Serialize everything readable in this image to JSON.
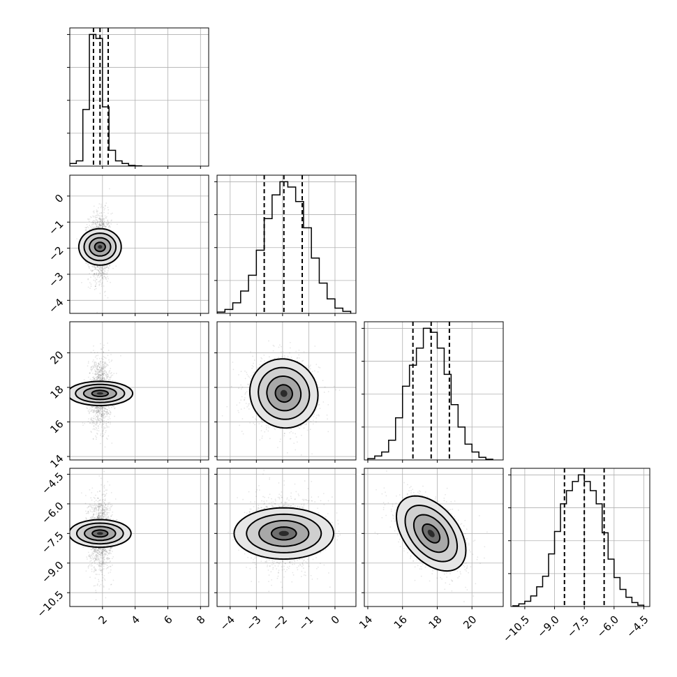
{
  "chart_data": {
    "type": "corner",
    "grid": true,
    "parameters": [
      {
        "range": [
          0,
          8.5
        ],
        "ticks": [
          2,
          4,
          6,
          8
        ],
        "tick_labels": [
          "2",
          "4",
          "6",
          "8"
        ],
        "quantiles": [
          1.45,
          1.85,
          2.35
        ],
        "hist_bins": [
          0.0,
          0.4,
          0.8,
          1.2,
          1.6,
          2.0,
          2.4,
          2.8,
          3.2,
          3.6,
          4.0,
          4.4
        ],
        "hist_counts": [
          20,
          40,
          430,
          1000,
          970,
          450,
          120,
          40,
          20,
          5,
          2
        ],
        "hist_ylim": [
          0,
          1050
        ],
        "center": 1.85,
        "sigma": 0.35
      },
      {
        "range": [
          -4.5,
          0.8
        ],
        "ticks": [
          -4,
          -3,
          -2,
          -1,
          0
        ],
        "tick_labels": [
          "−4",
          "−3",
          "−2",
          "−1",
          "0"
        ],
        "quantiles": [
          -2.7,
          -1.95,
          -1.25
        ],
        "hist_bins": [
          -4.5,
          -4.2,
          -3.9,
          -3.6,
          -3.3,
          -3.0,
          -2.7,
          -2.4,
          -2.1,
          -1.8,
          -1.5,
          -1.2,
          -0.9,
          -0.6,
          -0.3,
          0.0,
          0.3,
          0.6
        ],
        "hist_counts": [
          10,
          30,
          80,
          170,
          290,
          480,
          720,
          900,
          1000,
          960,
          850,
          650,
          420,
          230,
          110,
          40,
          15
        ],
        "hist_ylim": [
          0,
          1050
        ],
        "center": -1.95,
        "sigma": 0.65
      },
      {
        "range": [
          13.8,
          21.8
        ],
        "ticks": [
          14,
          16,
          18,
          20
        ],
        "tick_labels": [
          "14",
          "16",
          "18",
          "20"
        ],
        "quantiles": [
          16.6,
          17.65,
          18.7
        ],
        "hist_bins": [
          14.0,
          14.4,
          14.8,
          15.2,
          15.6,
          16.0,
          16.4,
          16.8,
          17.2,
          17.6,
          18.0,
          18.4,
          18.8,
          19.2,
          19.6,
          20.0,
          20.4,
          20.8,
          21.2
        ],
        "hist_counts": [
          10,
          30,
          60,
          150,
          320,
          560,
          720,
          850,
          1000,
          970,
          850,
          650,
          420,
          250,
          120,
          60,
          20,
          5
        ],
        "hist_ylim": [
          0,
          1050
        ],
        "center": 17.65,
        "sigma": 1.0
      },
      {
        "range": [
          -11.2,
          -4.2
        ],
        "ticks": [
          -10.5,
          -9.0,
          -7.5,
          -6.0,
          -4.5
        ],
        "tick_labels": [
          "−10.5",
          "−9.0",
          "−7.5",
          "−6.0",
          "−4.5"
        ],
        "quantiles": [
          -8.5,
          -7.5,
          -6.5
        ],
        "hist_bins": [
          -11.1,
          -10.8,
          -10.5,
          -10.2,
          -9.9,
          -9.6,
          -9.3,
          -9.0,
          -8.7,
          -8.4,
          -8.1,
          -7.8,
          -7.5,
          -7.2,
          -6.9,
          -6.6,
          -6.3,
          -6.0,
          -5.7,
          -5.4,
          -5.1,
          -4.8,
          -4.5
        ],
        "hist_counts": [
          5,
          20,
          40,
          80,
          150,
          230,
          400,
          570,
          780,
          880,
          950,
          1000,
          950,
          880,
          780,
          560,
          360,
          220,
          130,
          70,
          30,
          10
        ],
        "hist_ylim": [
          0,
          1050
        ],
        "center": -7.5,
        "sigma": 0.95
      }
    ],
    "correlations": [
      [
        1,
        0,
        0,
        0
      ],
      [
        0,
        1,
        -0.05,
        0
      ],
      [
        0,
        -0.05,
        1,
        -0.45
      ],
      [
        0,
        0,
        -0.45,
        1
      ]
    ],
    "contour_levels_sigma": [
      0.5,
      1.0,
      1.5,
      2.0
    ],
    "scatter_points": 1400
  }
}
